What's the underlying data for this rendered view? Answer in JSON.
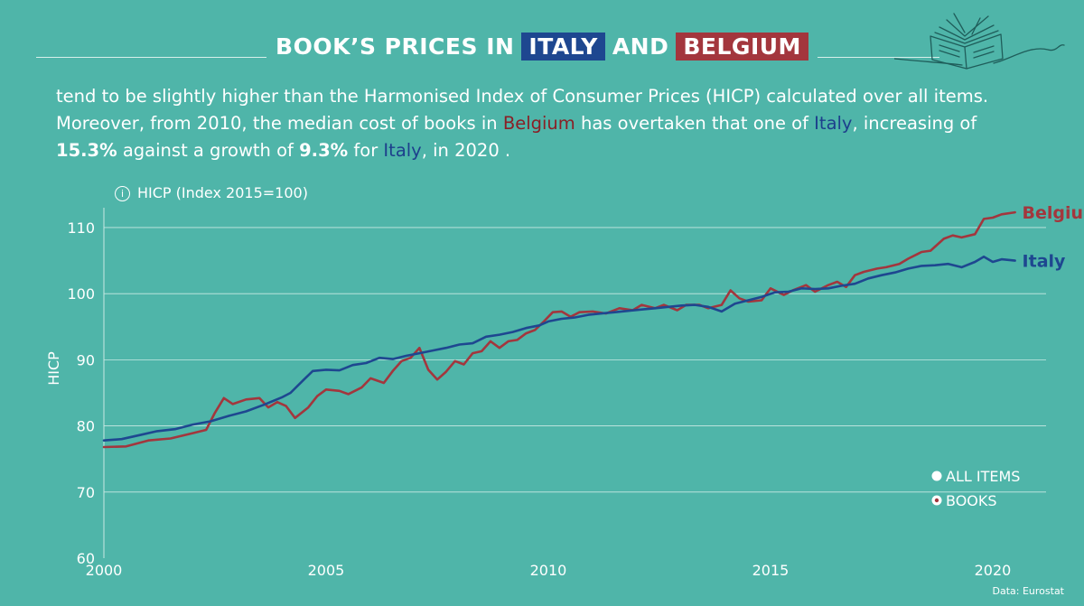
{
  "header": {
    "title_prefix": "BOOK’S  PRICES IN",
    "italy_tag": "ITALY",
    "and_text": "AND",
    "belgium_tag": "BELGIUM"
  },
  "description": {
    "line1": "tend to be slightly higher than the Harmonised Index of Consumer Prices (HICP) calculated over all items.",
    "l2_a": "Moreover, from 2010, the median cost of books in ",
    "l2_bel": "Belgium",
    "l2_b": " has overtaken that one of ",
    "l2_ita": "Italy",
    "l2_c": ", increasing of",
    "l3_v1": "15.3%",
    "l3_a": " against a growth of ",
    "l3_v2": "9.3%",
    "l3_b": " for ",
    "l3_ita": "Italy",
    "l3_c": ", in 2020 ."
  },
  "unit_label": "HICP (Index 2015=100)",
  "legend": {
    "all_items": "ALL ITEMS",
    "books": "BOOKS"
  },
  "source": "Data: Eurostat",
  "colors": {
    "background": "#4fb5a9",
    "italy": "#1e4790",
    "belgium": "#a3363d"
  },
  "chart_data": {
    "type": "line",
    "ylabel": "HICP",
    "xlabel": "",
    "ylim": [
      60,
      113
    ],
    "yticks": [
      60,
      70,
      80,
      90,
      100,
      110
    ],
    "xlim": [
      2000,
      2021.2
    ],
    "xticks": [
      2000,
      2005,
      2010,
      2015,
      2020
    ],
    "grid": "horizontal",
    "series": [
      {
        "name": "Belgium",
        "color": "#a3363d",
        "points": [
          [
            2000.0,
            76.8
          ],
          [
            2000.5,
            76.9
          ],
          [
            2001.0,
            77.8
          ],
          [
            2001.5,
            78.1
          ],
          [
            2002.0,
            78.9
          ],
          [
            2002.3,
            79.4
          ],
          [
            2002.5,
            82.0
          ],
          [
            2002.7,
            84.2
          ],
          [
            2002.9,
            83.3
          ],
          [
            2003.2,
            84.0
          ],
          [
            2003.5,
            84.2
          ],
          [
            2003.7,
            82.8
          ],
          [
            2003.9,
            83.6
          ],
          [
            2004.1,
            83.0
          ],
          [
            2004.3,
            81.2
          ],
          [
            2004.6,
            82.8
          ],
          [
            2004.8,
            84.5
          ],
          [
            2005.0,
            85.5
          ],
          [
            2005.3,
            85.3
          ],
          [
            2005.5,
            84.8
          ],
          [
            2005.8,
            85.8
          ],
          [
            2006.0,
            87.2
          ],
          [
            2006.3,
            86.5
          ],
          [
            2006.5,
            88.3
          ],
          [
            2006.7,
            89.8
          ],
          [
            2006.9,
            90.3
          ],
          [
            2007.1,
            91.8
          ],
          [
            2007.3,
            88.5
          ],
          [
            2007.5,
            87.0
          ],
          [
            2007.7,
            88.2
          ],
          [
            2007.9,
            89.8
          ],
          [
            2008.1,
            89.3
          ],
          [
            2008.3,
            91.0
          ],
          [
            2008.5,
            91.3
          ],
          [
            2008.7,
            92.8
          ],
          [
            2008.9,
            91.8
          ],
          [
            2009.1,
            92.8
          ],
          [
            2009.3,
            93.0
          ],
          [
            2009.5,
            94.0
          ],
          [
            2009.7,
            94.5
          ],
          [
            2009.9,
            95.8
          ],
          [
            2010.1,
            97.2
          ],
          [
            2010.3,
            97.3
          ],
          [
            2010.5,
            96.5
          ],
          [
            2010.7,
            97.2
          ],
          [
            2011.0,
            97.3
          ],
          [
            2011.3,
            97.0
          ],
          [
            2011.6,
            97.8
          ],
          [
            2011.9,
            97.5
          ],
          [
            2012.1,
            98.3
          ],
          [
            2012.4,
            97.8
          ],
          [
            2012.6,
            98.3
          ],
          [
            2012.9,
            97.5
          ],
          [
            2013.1,
            98.3
          ],
          [
            2013.4,
            98.3
          ],
          [
            2013.6,
            97.8
          ],
          [
            2013.9,
            98.3
          ],
          [
            2014.1,
            100.5
          ],
          [
            2014.3,
            99.3
          ],
          [
            2014.5,
            98.8
          ],
          [
            2014.8,
            99.0
          ],
          [
            2015.0,
            100.8
          ],
          [
            2015.3,
            99.8
          ],
          [
            2015.5,
            100.5
          ],
          [
            2015.8,
            101.3
          ],
          [
            2016.0,
            100.3
          ],
          [
            2016.3,
            101.3
          ],
          [
            2016.5,
            101.8
          ],
          [
            2016.7,
            101.0
          ],
          [
            2016.9,
            102.8
          ],
          [
            2017.1,
            103.3
          ],
          [
            2017.4,
            103.8
          ],
          [
            2017.6,
            104.0
          ],
          [
            2017.9,
            104.5
          ],
          [
            2018.1,
            105.3
          ],
          [
            2018.4,
            106.3
          ],
          [
            2018.6,
            106.5
          ],
          [
            2018.9,
            108.3
          ],
          [
            2019.1,
            108.8
          ],
          [
            2019.3,
            108.5
          ],
          [
            2019.6,
            109.0
          ],
          [
            2019.8,
            111.3
          ],
          [
            2020.0,
            111.5
          ],
          [
            2020.2,
            112.0
          ],
          [
            2020.5,
            112.3
          ]
        ]
      },
      {
        "name": "Italy",
        "color": "#1e4790",
        "points": [
          [
            2000.0,
            77.8
          ],
          [
            2000.4,
            78.0
          ],
          [
            2000.8,
            78.6
          ],
          [
            2001.2,
            79.2
          ],
          [
            2001.6,
            79.5
          ],
          [
            2002.0,
            80.2
          ],
          [
            2002.4,
            80.7
          ],
          [
            2002.8,
            81.5
          ],
          [
            2003.2,
            82.2
          ],
          [
            2003.6,
            83.2
          ],
          [
            2004.0,
            84.3
          ],
          [
            2004.2,
            85.0
          ],
          [
            2004.5,
            87.0
          ],
          [
            2004.7,
            88.3
          ],
          [
            2005.0,
            88.5
          ],
          [
            2005.3,
            88.4
          ],
          [
            2005.6,
            89.2
          ],
          [
            2005.9,
            89.5
          ],
          [
            2006.2,
            90.3
          ],
          [
            2006.5,
            90.1
          ],
          [
            2006.8,
            90.6
          ],
          [
            2007.1,
            91.0
          ],
          [
            2007.4,
            91.4
          ],
          [
            2007.7,
            91.8
          ],
          [
            2008.0,
            92.3
          ],
          [
            2008.3,
            92.5
          ],
          [
            2008.6,
            93.5
          ],
          [
            2008.9,
            93.8
          ],
          [
            2009.2,
            94.2
          ],
          [
            2009.5,
            94.8
          ],
          [
            2009.8,
            95.2
          ],
          [
            2010.0,
            95.8
          ],
          [
            2010.3,
            96.2
          ],
          [
            2010.6,
            96.4
          ],
          [
            2010.9,
            96.8
          ],
          [
            2011.2,
            97.0
          ],
          [
            2011.5,
            97.2
          ],
          [
            2011.8,
            97.4
          ],
          [
            2012.1,
            97.6
          ],
          [
            2012.4,
            97.8
          ],
          [
            2012.7,
            98.0
          ],
          [
            2013.0,
            98.2
          ],
          [
            2013.3,
            98.3
          ],
          [
            2013.6,
            98.0
          ],
          [
            2013.9,
            97.3
          ],
          [
            2014.2,
            98.5
          ],
          [
            2014.5,
            99.0
          ],
          [
            2014.8,
            99.5
          ],
          [
            2015.1,
            100.2
          ],
          [
            2015.4,
            100.3
          ],
          [
            2015.7,
            100.8
          ],
          [
            2016.0,
            100.7
          ],
          [
            2016.3,
            100.8
          ],
          [
            2016.6,
            101.2
          ],
          [
            2016.9,
            101.5
          ],
          [
            2017.2,
            102.3
          ],
          [
            2017.5,
            102.8
          ],
          [
            2017.8,
            103.2
          ],
          [
            2018.1,
            103.8
          ],
          [
            2018.4,
            104.2
          ],
          [
            2018.7,
            104.3
          ],
          [
            2019.0,
            104.5
          ],
          [
            2019.3,
            104.0
          ],
          [
            2019.6,
            104.8
          ],
          [
            2019.8,
            105.6
          ],
          [
            2020.0,
            104.8
          ],
          [
            2020.2,
            105.2
          ],
          [
            2020.5,
            105.0
          ]
        ]
      }
    ],
    "annotations": [
      {
        "text": "Belgium",
        "x": 2020.5,
        "y": 112.3,
        "color": "#a3363d"
      },
      {
        "text": "Italy",
        "x": 2020.5,
        "y": 105.0,
        "color": "#1e4790"
      }
    ]
  }
}
